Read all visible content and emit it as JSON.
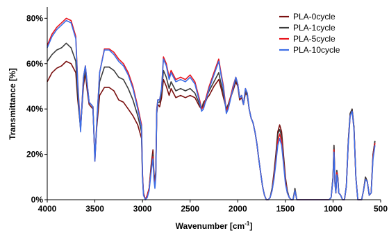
{
  "chart_data": {
    "type": "line",
    "title": "",
    "xlabel": "Wavenumber [cm",
    "xlabel_superscript": "-1",
    "xlabel_suffix": "]",
    "ylabel": "Transmittance [%]",
    "xlim": [
      4000,
      500
    ],
    "ylim": [
      0,
      85
    ],
    "x_reversed": true,
    "grid": false,
    "legend_position": "top-right",
    "x_ticks": [
      {
        "value": 4000,
        "label": "4000"
      },
      {
        "value": 3500,
        "label": "3500"
      },
      {
        "value": 3000,
        "label": "3000"
      },
      {
        "value": 2500,
        "label": "2500"
      },
      {
        "value": 2000,
        "label": "2000"
      },
      {
        "value": 1500,
        "label": "1500"
      },
      {
        "value": 1000,
        "label": "1000"
      },
      {
        "value": 500,
        "label": "500"
      }
    ],
    "y_ticks": [
      {
        "value": 0,
        "label": "0%"
      },
      {
        "value": 20,
        "label": "20%"
      },
      {
        "value": 40,
        "label": "40%"
      },
      {
        "value": 60,
        "label": "60%"
      },
      {
        "value": 80,
        "label": "80%"
      }
    ],
    "series": [
      {
        "name": "PLA-0cycle",
        "color": "#7a1010",
        "x": [
          4000,
          3950,
          3900,
          3850,
          3800,
          3750,
          3700,
          3680,
          3650,
          3620,
          3600,
          3580,
          3560,
          3540,
          3520,
          3500,
          3480,
          3450,
          3400,
          3350,
          3300,
          3250,
          3200,
          3150,
          3100,
          3050,
          3010,
          3000,
          2990,
          2970,
          2950,
          2930,
          2910,
          2890,
          2880,
          2870,
          2860,
          2850,
          2840,
          2820,
          2800,
          2780,
          2750,
          2720,
          2700,
          2650,
          2600,
          2550,
          2500,
          2450,
          2400,
          2380,
          2360,
          2340,
          2320,
          2300,
          2250,
          2200,
          2180,
          2150,
          2120,
          2100,
          2050,
          2020,
          2000,
          1980,
          1960,
          1940,
          1920,
          1900,
          1880,
          1860,
          1840,
          1820,
          1800,
          1780,
          1760,
          1740,
          1720,
          1700,
          1680,
          1660,
          1640,
          1620,
          1600,
          1580,
          1560,
          1540,
          1520,
          1500,
          1480,
          1460,
          1440,
          1420,
          1400,
          1380,
          1360,
          1340,
          1300,
          1250,
          1200,
          1150,
          1100,
          1080,
          1060,
          1040,
          1020,
          1000,
          990,
          980,
          970,
          960,
          950,
          940,
          920,
          900,
          880,
          860,
          840,
          820,
          800,
          780,
          760,
          740,
          720,
          700,
          680,
          660,
          640,
          620,
          600,
          580,
          560
        ],
        "y": [
          52,
          56,
          58,
          59,
          61,
          60,
          56,
          44,
          32,
          50,
          56,
          48,
          42,
          41,
          40,
          19,
          32,
          46,
          49.5,
          49.5,
          48,
          44,
          43,
          40,
          37,
          33,
          27,
          10,
          3,
          0,
          2,
          5,
          15,
          22,
          12,
          8,
          13,
          38,
          42,
          41,
          45,
          53,
          50,
          46,
          49,
          45,
          46,
          45,
          46,
          45,
          41,
          40,
          42,
          43,
          45,
          46,
          50,
          53,
          50,
          45,
          40,
          42,
          48,
          52,
          50,
          44,
          45,
          42,
          47,
          46,
          40,
          36,
          34,
          30,
          25,
          18,
          12,
          6,
          2,
          0,
          0,
          1,
          5,
          12,
          20,
          30,
          33,
          30,
          20,
          10,
          4,
          1,
          0,
          0,
          4,
          0,
          0,
          0,
          0,
          0,
          0,
          0,
          0,
          0,
          0,
          0,
          1,
          10,
          24,
          8,
          3,
          12,
          10,
          3,
          2,
          0,
          0,
          6,
          26,
          38,
          40,
          32,
          10,
          0,
          0,
          0,
          4,
          10,
          8,
          2,
          3,
          20,
          26
        ]
      },
      {
        "name": "PLA-1cycle",
        "color": "#3c3c3c",
        "x": [
          4000,
          3950,
          3900,
          3850,
          3800,
          3750,
          3700,
          3680,
          3650,
          3620,
          3600,
          3580,
          3560,
          3540,
          3520,
          3500,
          3480,
          3450,
          3400,
          3350,
          3300,
          3250,
          3200,
          3150,
          3100,
          3050,
          3010,
          3000,
          2990,
          2970,
          2950,
          2930,
          2910,
          2890,
          2880,
          2870,
          2860,
          2850,
          2840,
          2820,
          2800,
          2780,
          2750,
          2720,
          2700,
          2650,
          2600,
          2550,
          2500,
          2450,
          2400,
          2380,
          2360,
          2340,
          2320,
          2300,
          2250,
          2200,
          2180,
          2150,
          2120,
          2100,
          2050,
          2020,
          2000,
          1980,
          1960,
          1940,
          1920,
          1900,
          1880,
          1860,
          1840,
          1820,
          1800,
          1780,
          1760,
          1740,
          1720,
          1700,
          1680,
          1660,
          1640,
          1620,
          1600,
          1580,
          1560,
          1540,
          1520,
          1500,
          1480,
          1460,
          1440,
          1420,
          1400,
          1380,
          1360,
          1340,
          1300,
          1250,
          1200,
          1150,
          1100,
          1080,
          1060,
          1040,
          1020,
          1000,
          990,
          980,
          970,
          960,
          950,
          940,
          920,
          900,
          880,
          860,
          840,
          820,
          800,
          780,
          760,
          740,
          720,
          700,
          680,
          660,
          640,
          620,
          600,
          580,
          560
        ],
        "y": [
          61,
          64,
          66,
          67,
          69,
          67,
          61,
          46,
          31,
          52,
          57,
          50,
          43,
          42,
          41,
          18,
          33,
          52,
          58.5,
          58.5,
          57,
          54,
          53,
          49,
          44,
          37,
          30,
          11,
          3,
          0,
          2,
          5,
          14,
          20,
          11,
          7,
          12,
          40,
          43,
          43,
          47,
          57,
          54,
          49,
          52,
          48,
          49,
          48,
          49,
          47,
          42,
          40,
          43,
          44,
          46,
          48,
          52,
          56,
          52,
          47,
          40,
          42,
          49,
          53,
          51,
          45,
          46,
          42,
          48,
          46,
          40,
          36,
          34,
          30,
          25,
          18,
          12,
          6,
          2,
          0,
          0,
          1,
          5,
          11,
          19,
          29,
          31,
          28,
          19,
          9,
          4,
          1,
          0,
          0,
          5,
          0,
          0,
          0,
          0,
          0,
          0,
          0,
          0,
          0,
          0,
          0,
          1,
          10,
          24,
          8,
          3,
          13,
          10,
          3,
          2,
          0,
          0,
          6,
          26,
          38,
          40,
          32,
          10,
          0,
          0,
          0,
          4,
          10,
          8,
          2,
          3,
          20,
          26
        ]
      },
      {
        "name": "PLA-5cycle",
        "color": "#e8141c",
        "x": [
          4000,
          3950,
          3900,
          3850,
          3800,
          3750,
          3700,
          3680,
          3650,
          3620,
          3600,
          3580,
          3560,
          3540,
          3520,
          3500,
          3480,
          3450,
          3400,
          3350,
          3300,
          3250,
          3200,
          3150,
          3100,
          3050,
          3010,
          3000,
          2990,
          2970,
          2950,
          2930,
          2910,
          2890,
          2880,
          2870,
          2860,
          2850,
          2840,
          2820,
          2800,
          2780,
          2750,
          2720,
          2700,
          2650,
          2600,
          2550,
          2500,
          2450,
          2400,
          2380,
          2360,
          2340,
          2320,
          2300,
          2250,
          2200,
          2180,
          2150,
          2120,
          2100,
          2050,
          2020,
          2000,
          1980,
          1960,
          1940,
          1920,
          1900,
          1880,
          1860,
          1840,
          1820,
          1800,
          1780,
          1760,
          1740,
          1720,
          1700,
          1680,
          1660,
          1640,
          1620,
          1600,
          1580,
          1560,
          1540,
          1520,
          1500,
          1480,
          1460,
          1440,
          1420,
          1400,
          1380,
          1360,
          1340,
          1300,
          1250,
          1200,
          1150,
          1100,
          1080,
          1060,
          1040,
          1020,
          1000,
          990,
          980,
          970,
          960,
          950,
          940,
          920,
          900,
          880,
          860,
          840,
          820,
          800,
          780,
          760,
          740,
          720,
          700,
          680,
          660,
          640,
          620,
          600,
          580,
          560
        ],
        "y": [
          68,
          73,
          76,
          78,
          80,
          79,
          72,
          52,
          31,
          54,
          59,
          51,
          43,
          42,
          41,
          17,
          34,
          56,
          66.5,
          66.5,
          65,
          62,
          60,
          56,
          50,
          41,
          33,
          12,
          3,
          0,
          2,
          5,
          13,
          19,
          10,
          6,
          11,
          40,
          44,
          44,
          49,
          63,
          60,
          54,
          57,
          53,
          54,
          53,
          55,
          52,
          44,
          40,
          41,
          44,
          47,
          50,
          56,
          62,
          57,
          50,
          39,
          41,
          50,
          54,
          51,
          45,
          46,
          42,
          49,
          47,
          40,
          36,
          34,
          30,
          25,
          18,
          12,
          6,
          2,
          0,
          0,
          1,
          4,
          10,
          17,
          26,
          29,
          26,
          17,
          8,
          3,
          1,
          0,
          0,
          4,
          0,
          0,
          0,
          0,
          0,
          0,
          0,
          0,
          0,
          0,
          0,
          1,
          9,
          22,
          7,
          3,
          12,
          9,
          3,
          2,
          0,
          0,
          6,
          25,
          37,
          39,
          31,
          10,
          0,
          0,
          0,
          4,
          9,
          8,
          2,
          3,
          19,
          25
        ]
      },
      {
        "name": "PLA-10cycle",
        "color": "#3c6ee6",
        "x": [
          4000,
          3950,
          3900,
          3850,
          3800,
          3750,
          3700,
          3680,
          3650,
          3620,
          3600,
          3580,
          3560,
          3540,
          3520,
          3500,
          3480,
          3450,
          3400,
          3350,
          3300,
          3250,
          3200,
          3150,
          3100,
          3050,
          3010,
          3000,
          2990,
          2970,
          2950,
          2930,
          2910,
          2890,
          2880,
          2870,
          2860,
          2850,
          2840,
          2820,
          2800,
          2780,
          2750,
          2720,
          2700,
          2650,
          2600,
          2550,
          2500,
          2450,
          2400,
          2380,
          2360,
          2340,
          2320,
          2300,
          2250,
          2200,
          2180,
          2150,
          2120,
          2100,
          2050,
          2020,
          2000,
          1980,
          1960,
          1940,
          1920,
          1900,
          1880,
          1860,
          1840,
          1820,
          1800,
          1780,
          1760,
          1740,
          1720,
          1700,
          1680,
          1660,
          1640,
          1620,
          1600,
          1580,
          1560,
          1540,
          1520,
          1500,
          1480,
          1460,
          1440,
          1420,
          1400,
          1380,
          1360,
          1340,
          1300,
          1250,
          1200,
          1150,
          1100,
          1080,
          1060,
          1040,
          1020,
          1000,
          990,
          980,
          970,
          960,
          950,
          940,
          920,
          900,
          880,
          860,
          840,
          820,
          800,
          780,
          760,
          740,
          720,
          700,
          680,
          660,
          640,
          620,
          600,
          580,
          560
        ],
        "y": [
          67,
          72,
          75,
          77,
          79,
          78,
          71,
          51,
          30,
          54,
          59,
          51,
          43,
          42,
          41,
          17,
          34,
          56,
          66,
          66,
          64,
          61,
          59,
          55,
          49,
          40,
          32,
          11,
          2,
          0,
          1,
          4,
          12,
          18,
          9,
          5,
          10,
          39,
          44,
          44,
          49,
          62,
          59,
          53,
          56,
          52,
          53,
          52,
          54,
          51,
          43,
          39,
          40,
          43,
          46,
          49,
          55,
          61,
          56,
          49,
          38,
          40,
          49,
          54,
          51,
          45,
          46,
          42,
          49,
          47,
          40,
          36,
          34,
          30,
          25,
          18,
          12,
          6,
          2,
          0,
          0,
          1,
          4,
          9,
          16,
          24,
          27,
          24,
          16,
          7,
          3,
          1,
          0,
          0,
          4,
          0,
          0,
          0,
          0,
          0,
          0,
          0,
          0,
          0,
          0,
          0,
          1,
          9,
          21,
          7,
          3,
          11,
          9,
          3,
          2,
          0,
          0,
          6,
          25,
          37,
          39,
          31,
          10,
          0,
          0,
          0,
          4,
          9,
          8,
          2,
          3,
          18,
          24
        ]
      }
    ]
  }
}
